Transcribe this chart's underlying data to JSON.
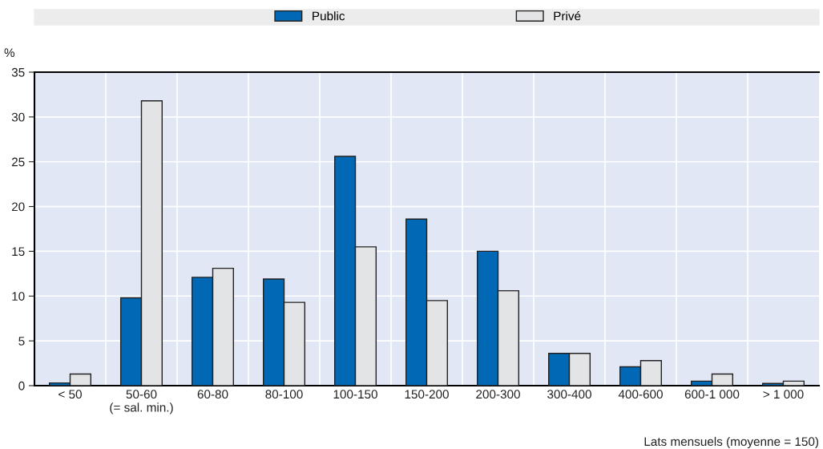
{
  "chart_data": {
    "type": "bar",
    "ylabel": "%",
    "xlabel": "Lats mensuels (moyenne = 150)",
    "categories": [
      "< 50",
      "50-60\n(= sal. min.)",
      "60-80",
      "80-100",
      "100-150",
      "150-200",
      "200-300",
      "300-400",
      "400-600",
      "600-1 000",
      "> 1 000"
    ],
    "series": [
      {
        "name": "Public",
        "color": "#0068b5",
        "values": [
          0.3,
          9.8,
          12.1,
          11.9,
          25.6,
          18.6,
          15.0,
          3.6,
          2.1,
          0.5,
          0.25
        ]
      },
      {
        "name": "Privé",
        "color": "#e3e4e6",
        "values": [
          1.3,
          31.8,
          13.1,
          9.3,
          15.5,
          9.5,
          10.6,
          3.6,
          2.8,
          1.3,
          0.5
        ]
      }
    ],
    "ylim": [
      0,
      35
    ],
    "yticks": [
      0,
      5,
      10,
      15,
      20,
      25,
      30,
      35
    ],
    "grid": true,
    "legend": "top"
  }
}
